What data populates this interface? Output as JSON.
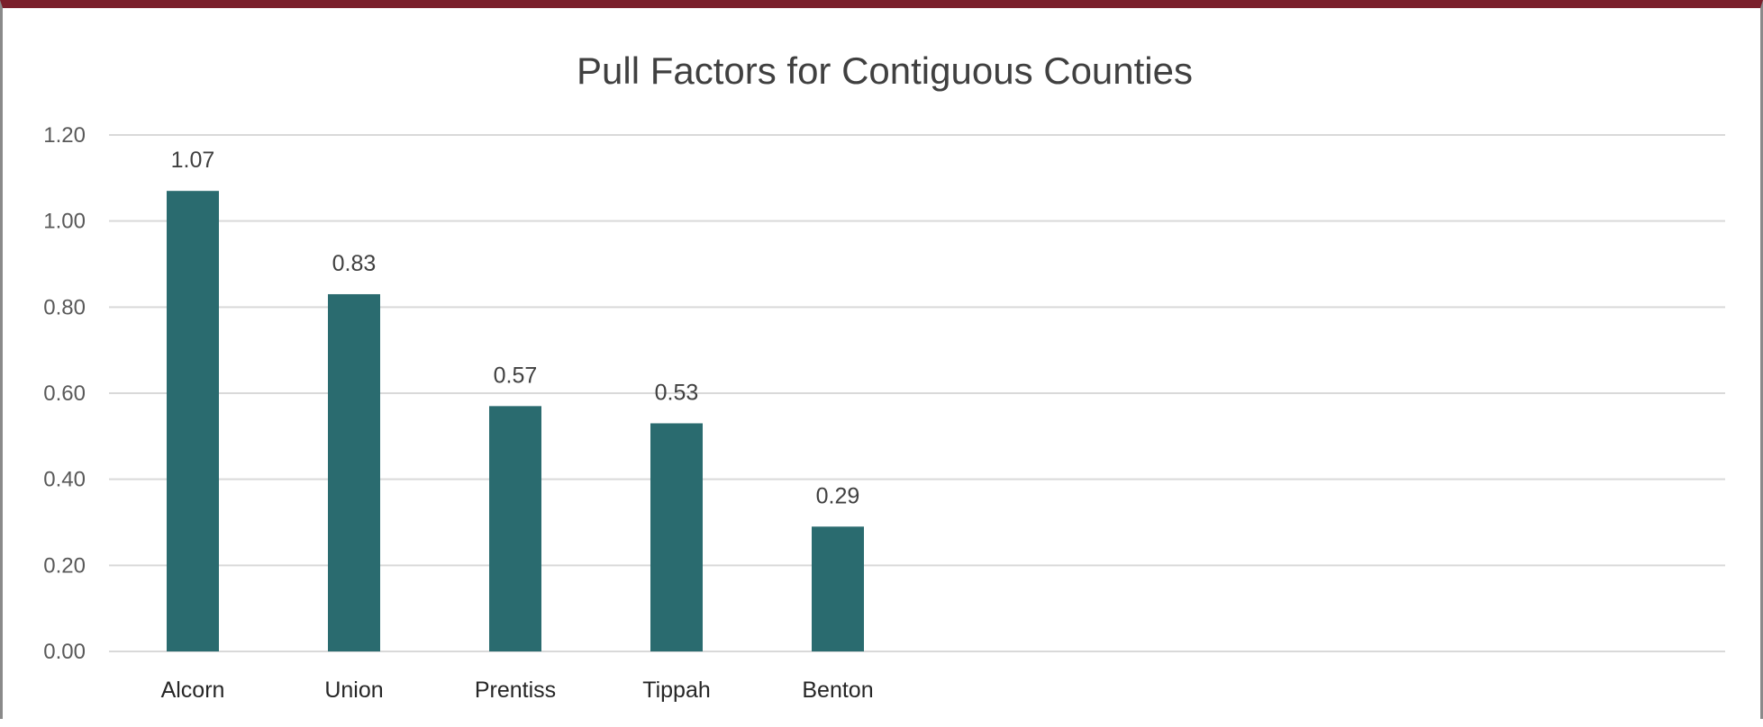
{
  "chart_data": {
    "type": "bar",
    "title": "Pull Factors for Contiguous Counties",
    "categories": [
      "Alcorn",
      "Union",
      "Prentiss",
      "Tippah",
      "Benton"
    ],
    "values": [
      1.07,
      0.83,
      0.57,
      0.53,
      0.29
    ],
    "data_labels": [
      "1.07",
      "0.83",
      "0.57",
      "0.53",
      "0.29"
    ],
    "y_ticks": [
      "0.00",
      "0.20",
      "0.40",
      "0.60",
      "0.80",
      "1.00",
      "1.20"
    ],
    "ylim": [
      0,
      1.2
    ],
    "xlabel": "",
    "ylabel": "",
    "grid": true,
    "legend": "none",
    "bar_color": "#2a6b6f",
    "frame_accent_color": "#7a1f2b"
  }
}
